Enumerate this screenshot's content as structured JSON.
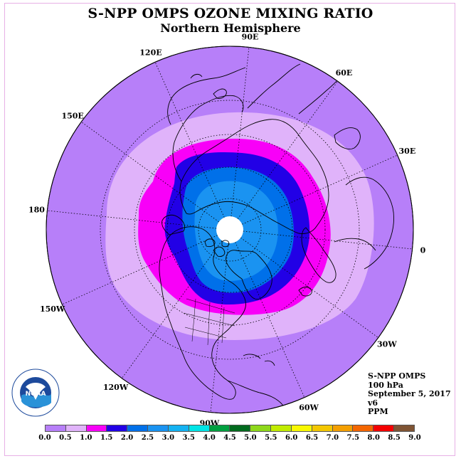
{
  "title": "S-NPP OMPS OZONE MIXING RATIO",
  "subtitle": "Northern Hemisphere",
  "longitude_labels": [
    "90E",
    "60E",
    "30E",
    "0",
    "30W",
    "60W",
    "90W",
    "120W",
    "150W",
    "180",
    "150E",
    "120E"
  ],
  "info": {
    "instrument": "S-NPP OMPS",
    "level": "100 hPa",
    "date": "September 5, 2017",
    "version": "v6",
    "units": "PPM"
  },
  "colorbar": {
    "ticks": [
      "0.0",
      "0.5",
      "1.0",
      "1.5",
      "2.0",
      "2.5",
      "3.0",
      "3.5",
      "4.0",
      "4.5",
      "5.0",
      "5.5",
      "6.0",
      "6.5",
      "7.0",
      "7.5",
      "8.0",
      "8.5",
      "9.0"
    ],
    "colors": [
      "#b77ff9",
      "#e0b3fa",
      "#f800f8",
      "#2200e6",
      "#0070e9",
      "#1a93f1",
      "#14b2f2",
      "#00e4e6",
      "#00a040",
      "#006b1e",
      "#8ed81b",
      "#c1ec00",
      "#f9f900",
      "#f4c700",
      "#f49f00",
      "#f46600",
      "#f40000",
      "#7f5434"
    ]
  },
  "map": {
    "projection": "north polar stereographic",
    "background_level_ppm": "0.0-0.5",
    "colors": {
      "ocean_outer": "#b77ff9",
      "band_light": "#e0b3fa",
      "band_magenta": "#f800f8",
      "band_blue": "#2200e6",
      "band_mid": "#0070e9",
      "band_inner": "#1a93f1",
      "pole_nodata": "#ffffff",
      "coastline": "#000000"
    }
  },
  "logo": {
    "text": "NOAA",
    "ring_text": "NATIONAL OCEANIC AND ATMOSPHERIC ADMINISTRATION",
    "ring_text_bottom": "U.S. DEPARTMENT OF COMMERCE"
  }
}
